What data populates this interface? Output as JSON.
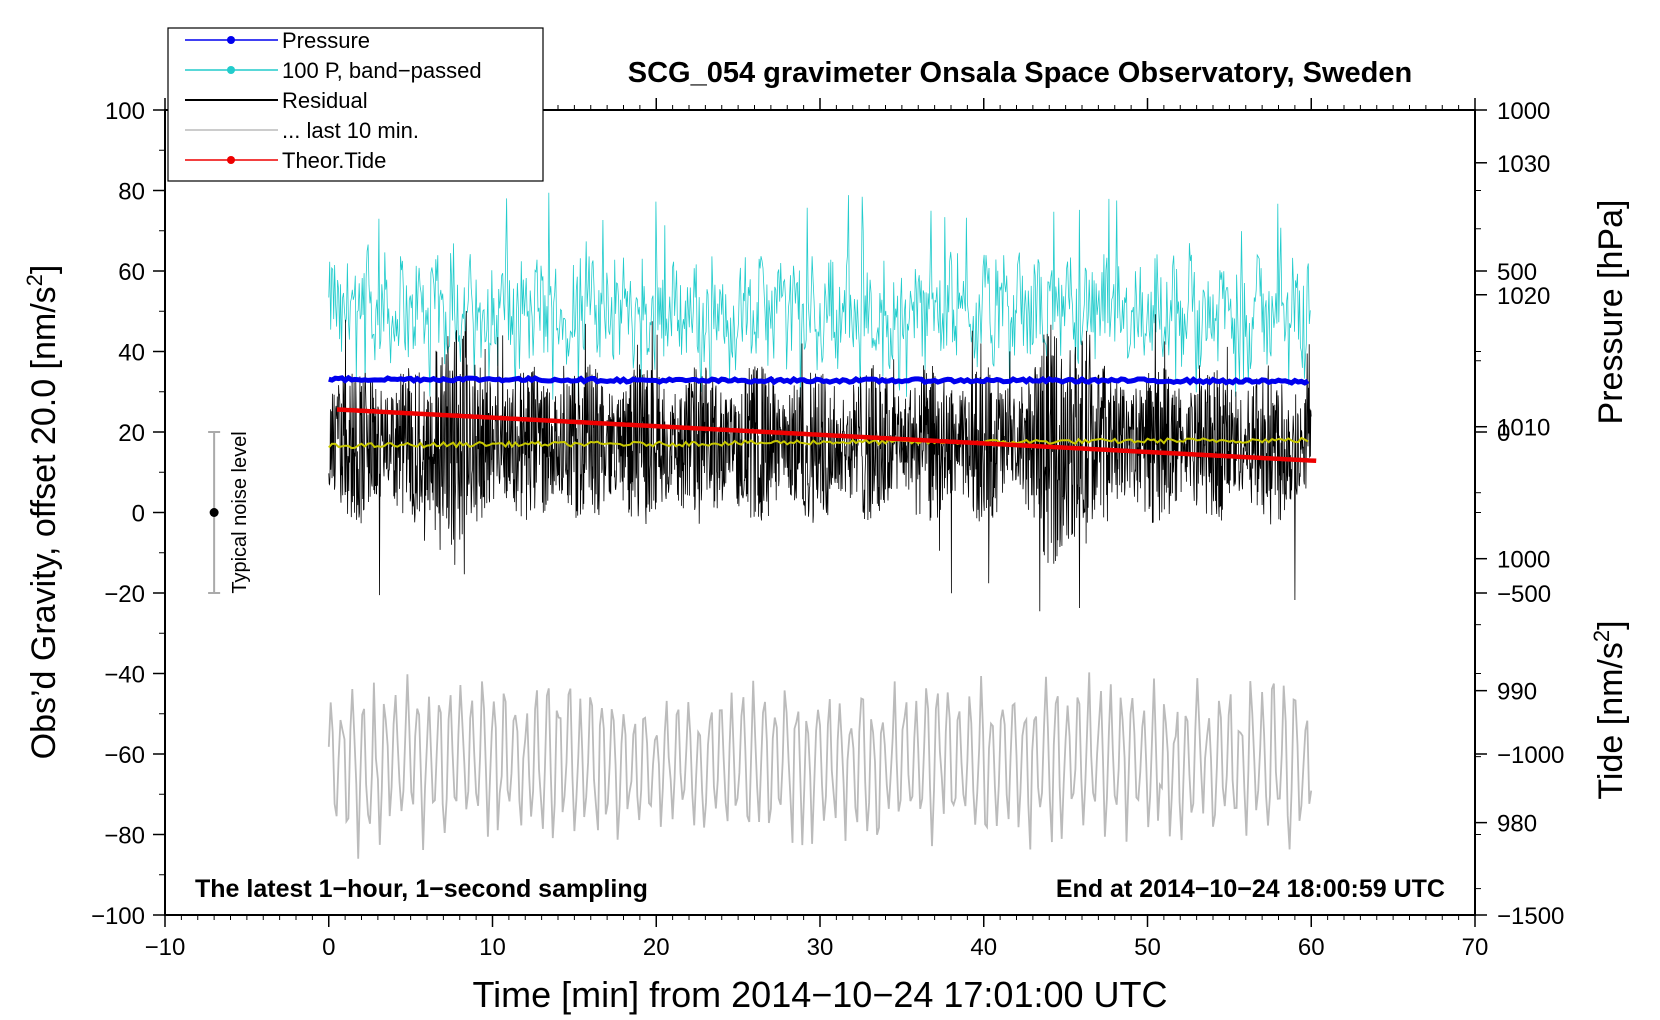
{
  "chart_data": {
    "type": "line",
    "title": "SCG_054 gravimeter Onsala Space Observatory, Sweden",
    "xlabel": "Time [min] from 2014−10−24 17:01:00 UTC",
    "ylabel_left": "Obs’d Gravity, offset 20.0 [nm/s",
    "ylabel_left_unit_tail": "]",
    "ylabel_right_pressure": "Pressure [hPa]",
    "ylabel_right_tide": "Tide [nm/s",
    "ylabel_right_tide_tail": "]",
    "superscript": "2",
    "xlim": [
      -10,
      70
    ],
    "ylim_left": [
      -100,
      100
    ],
    "pressure_lim": [
      973,
      1034
    ],
    "tide_lim": [
      -1500,
      1000
    ],
    "xticks": [
      -10,
      0,
      10,
      20,
      30,
      40,
      50,
      60,
      70
    ],
    "xtick_labels": [
      "−10",
      "0",
      "10",
      "20",
      "30",
      "40",
      "50",
      "60",
      "70"
    ],
    "yticks_left": [
      -100,
      -80,
      -60,
      -40,
      -20,
      0,
      20,
      40,
      60,
      80,
      100
    ],
    "ytick_labels_left": [
      "−100",
      "−80",
      "−60",
      "−40",
      "−20",
      "0",
      "20",
      "40",
      "60",
      "80",
      "100"
    ],
    "pressure_ticks": [
      980,
      990,
      1000,
      1010,
      1020,
      1030
    ],
    "pressure_tick_labels": [
      "980",
      "990",
      "1000",
      "1010",
      "1020",
      "1030"
    ],
    "tide_ticks": [
      -1500,
      -1000,
      -500,
      0,
      500,
      1000
    ],
    "tide_tick_labels": [
      "−1500",
      "−1000",
      "−500",
      "0",
      "500",
      "1000"
    ],
    "annotation_left": "The latest 1−hour, 1−second sampling",
    "annotation_right": "End at 2014−10−24 18:00:59 UTC",
    "noise_bar": {
      "label": "Typical noise level",
      "x": -7,
      "y_center": 0,
      "y_low": -20,
      "y_high": 20
    },
    "legend": [
      {
        "label": "Pressure",
        "color": "#0000ee",
        "marker": true
      },
      {
        "label": "100 P, band−passed",
        "color": "#22cccc",
        "marker": true
      },
      {
        "label": "Residual",
        "color": "#000000",
        "marker": false
      },
      {
        "label": "... last 10 min.",
        "color": "#bbbbbb",
        "marker": false
      },
      {
        "label": "Theor.Tide",
        "color": "#ee0000",
        "marker": true
      }
    ],
    "series": [
      {
        "name": "Pressure",
        "axis": "pressure",
        "color": "#0000ee",
        "x": [
          0,
          10,
          20,
          30,
          40,
          50,
          60
        ],
        "y": [
          1013.6,
          1013.6,
          1013.5,
          1013.5,
          1013.5,
          1013.5,
          1013.4
        ]
      },
      {
        "name": "100 P, band−passed",
        "axis": "left",
        "color": "#22cccc",
        "x": [
          0,
          60
        ],
        "y_center": [
          50,
          50
        ],
        "y_range": [
          28,
          80
        ]
      },
      {
        "name": "Residual",
        "axis": "left",
        "color": "#000000",
        "x": [
          0,
          60
        ],
        "y_center": [
          17,
          17
        ],
        "y_range": [
          -26,
          51
        ]
      },
      {
        "name": "Residual mean",
        "axis": "left",
        "color": "#c8c800",
        "x": [
          0,
          10,
          20,
          30,
          40,
          50,
          60
        ],
        "y": [
          16.5,
          17,
          17,
          17.5,
          17.5,
          17.8,
          18
        ]
      },
      {
        "name": "... last 10 min.",
        "axis": "left",
        "color": "#bbbbbb",
        "x": [
          0,
          60
        ],
        "y_center": [
          -62,
          -62
        ],
        "y_range": [
          -90,
          -34
        ]
      },
      {
        "name": "Theor.Tide",
        "axis": "tide",
        "color": "#ee0000",
        "x": [
          0.5,
          10,
          20,
          30,
          40,
          50,
          60.5
        ],
        "y": [
          70,
          30,
          -10,
          -50,
          -90,
          -140,
          -90
        ]
      }
    ]
  }
}
